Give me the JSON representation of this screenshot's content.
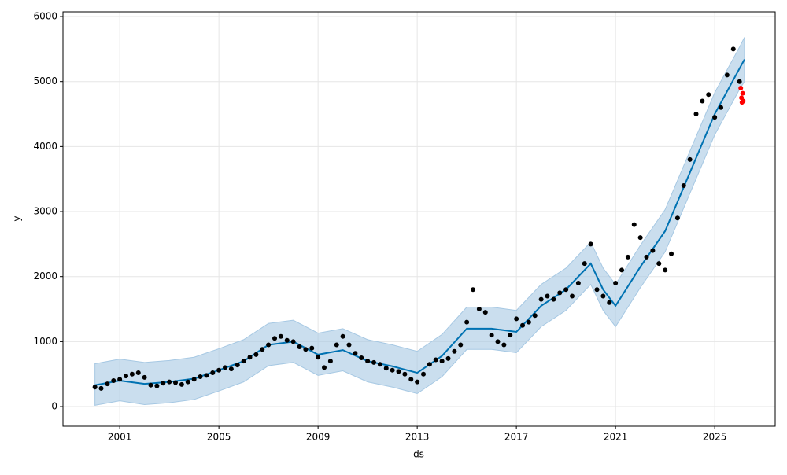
{
  "chart_data": {
    "type": "forecast",
    "x_label": "ds",
    "y_label": "y",
    "xlim": [
      1998.71,
      2027.44
    ],
    "xticks": [
      2001,
      2005,
      2009,
      2013,
      2017,
      2021,
      2025
    ],
    "ylim": [
      -302,
      6073
    ],
    "yticks": [
      0,
      1000,
      2000,
      3000,
      4000,
      5000,
      6000
    ],
    "grid": true,
    "observed": {
      "color": "#000000",
      "x": [
        2000.0,
        2000.25,
        2000.5,
        2000.75,
        2001.0,
        2001.25,
        2001.5,
        2001.75,
        2002.0,
        2002.25,
        2002.5,
        2002.75,
        2003.0,
        2003.25,
        2003.5,
        2003.75,
        2004.0,
        2004.25,
        2004.5,
        2004.75,
        2005.0,
        2005.25,
        2005.5,
        2005.75,
        2006.0,
        2006.25,
        2006.5,
        2006.75,
        2007.0,
        2007.25,
        2007.5,
        2007.75,
        2008.0,
        2008.25,
        2008.5,
        2008.75,
        2009.0,
        2009.25,
        2009.5,
        2009.75,
        2010.0,
        2010.25,
        2010.5,
        2010.75,
        2011.0,
        2011.25,
        2011.5,
        2011.75,
        2012.0,
        2012.25,
        2012.5,
        2012.75,
        2013.0,
        2013.25,
        2013.5,
        2013.75,
        2014.0,
        2014.25,
        2014.5,
        2014.75,
        2015.0,
        2015.25,
        2015.5,
        2015.75,
        2016.0,
        2016.25,
        2016.5,
        2016.75,
        2017.0,
        2017.25,
        2017.5,
        2017.75,
        2018.0,
        2018.25,
        2018.5,
        2018.75,
        2019.0,
        2019.25,
        2019.5,
        2019.75,
        2020.0,
        2020.25,
        2020.5,
        2020.75,
        2021.0,
        2021.25,
        2021.5,
        2021.75,
        2022.0,
        2022.25,
        2022.5,
        2022.75,
        2023.0,
        2023.25,
        2023.5,
        2023.75,
        2024.0,
        2024.25,
        2024.5,
        2024.75,
        2025.0,
        2025.25,
        2025.5,
        2025.75,
        2026.0
      ],
      "values": [
        300,
        280,
        350,
        400,
        420,
        470,
        500,
        520,
        450,
        330,
        320,
        360,
        380,
        370,
        340,
        380,
        420,
        460,
        480,
        520,
        560,
        600,
        580,
        640,
        700,
        760,
        800,
        880,
        950,
        1050,
        1080,
        1020,
        1000,
        920,
        880,
        900,
        760,
        600,
        700,
        950,
        1080,
        950,
        820,
        750,
        700,
        680,
        650,
        590,
        560,
        540,
        500,
        420,
        380,
        500,
        650,
        720,
        700,
        740,
        850,
        950,
        1300,
        1800,
        1500,
        1450,
        1100,
        1000,
        950,
        1100,
        1350,
        1250,
        1300,
        1400,
        1650,
        1700,
        1650,
        1750,
        1800,
        1700,
        1900,
        2200,
        2500,
        1800,
        1700,
        1600,
        1900,
        2100,
        2300,
        2800,
        2600,
        2300,
        2400,
        2200,
        2100,
        2350,
        2900,
        3400,
        3800,
        4500,
        4700,
        4800,
        4450,
        4600,
        5100,
        5500,
        5000
      ]
    },
    "future": {
      "color": "#ff0000",
      "x": [
        2026.05,
        2026.08,
        2026.1,
        2026.13,
        2026.15
      ],
      "values": [
        4900,
        4750,
        4680,
        4820,
        4700
      ]
    },
    "forecast": {
      "color": "#0072b2",
      "band_color": "#a6c8e3",
      "x": [
        2000,
        2001,
        2002,
        2003,
        2004,
        2005,
        2006,
        2007,
        2008,
        2009,
        2010,
        2011,
        2012,
        2013,
        2014,
        2015,
        2016,
        2017,
        2018,
        2019,
        2020,
        2020.5,
        2021,
        2022,
        2023,
        2024,
        2025,
        2026,
        2026.2
      ],
      "values": [
        330,
        400,
        350,
        380,
        430,
        560,
        700,
        950,
        1000,
        800,
        870,
        700,
        620,
        520,
        780,
        1200,
        1200,
        1150,
        1550,
        1800,
        2200,
        1800,
        1550,
        2150,
        2700,
        3600,
        4500,
        5200,
        5340
      ],
      "lower": [
        20,
        90,
        30,
        60,
        110,
        240,
        380,
        630,
        680,
        480,
        550,
        380,
        300,
        200,
        460,
        880,
        880,
        830,
        1230,
        1480,
        1880,
        1480,
        1230,
        1830,
        2380,
        3280,
        4180,
        4880,
        5000
      ],
      "upper": [
        660,
        730,
        680,
        710,
        760,
        890,
        1030,
        1280,
        1330,
        1130,
        1200,
        1030,
        950,
        850,
        1110,
        1530,
        1530,
        1480,
        1880,
        2130,
        2530,
        2130,
        1880,
        2480,
        3030,
        3930,
        4830,
        5530,
        5680
      ]
    }
  }
}
